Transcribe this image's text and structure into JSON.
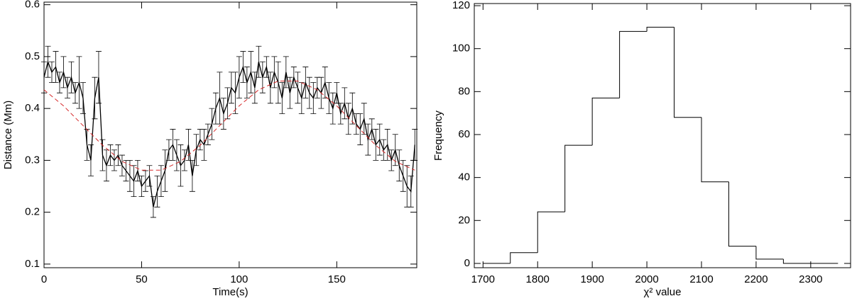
{
  "chart_data": [
    {
      "type": "line",
      "xlabel": "Time(s)",
      "ylabel": "Distance (Mm)",
      "xlim": [
        0,
        191
      ],
      "ylim": [
        0.093,
        0.605
      ],
      "xticks": [
        0,
        50,
        100,
        150
      ],
      "yticks": [
        0.1,
        0.2,
        0.3,
        0.4,
        0.5,
        0.6
      ],
      "series": [
        {
          "color": "#000000",
          "style": "solid",
          "x": [
            0,
            2,
            4,
            6,
            8,
            10,
            12,
            14,
            16,
            18,
            20,
            22,
            24,
            26,
            28,
            30,
            32,
            34,
            36,
            38,
            40,
            42,
            44,
            46,
            48,
            50,
            52,
            54,
            56,
            58,
            60,
            62,
            64,
            66,
            68,
            70,
            72,
            74,
            76,
            78,
            80,
            82,
            84,
            86,
            88,
            90,
            92,
            94,
            96,
            98,
            100,
            102,
            104,
            106,
            108,
            110,
            112,
            114,
            116,
            118,
            120,
            122,
            124,
            126,
            128,
            130,
            132,
            134,
            136,
            138,
            140,
            142,
            144,
            146,
            148,
            150,
            152,
            154,
            156,
            158,
            160,
            162,
            164,
            166,
            168,
            170,
            172,
            174,
            176,
            178,
            180,
            182,
            184,
            186,
            188,
            190
          ],
          "values": [
            0.46,
            0.49,
            0.47,
            0.48,
            0.45,
            0.47,
            0.44,
            0.46,
            0.43,
            0.45,
            0.42,
            0.33,
            0.3,
            0.42,
            0.46,
            0.31,
            0.29,
            0.31,
            0.3,
            0.31,
            0.29,
            0.28,
            0.27,
            0.26,
            0.28,
            0.25,
            0.26,
            0.27,
            0.21,
            0.24,
            0.26,
            0.28,
            0.32,
            0.33,
            0.31,
            0.29,
            0.3,
            0.33,
            0.27,
            0.32,
            0.34,
            0.33,
            0.35,
            0.37,
            0.4,
            0.42,
            0.39,
            0.41,
            0.44,
            0.43,
            0.46,
            0.48,
            0.45,
            0.47,
            0.44,
            0.49,
            0.46,
            0.48,
            0.44,
            0.47,
            0.45,
            0.42,
            0.47,
            0.43,
            0.46,
            0.44,
            0.42,
            0.45,
            0.43,
            0.42,
            0.44,
            0.43,
            0.45,
            0.42,
            0.4,
            0.43,
            0.39,
            0.41,
            0.38,
            0.4,
            0.37,
            0.36,
            0.38,
            0.34,
            0.36,
            0.33,
            0.34,
            0.32,
            0.33,
            0.3,
            0.32,
            0.29,
            0.27,
            0.25,
            0.24,
            0.33
          ],
          "errors": [
            0.03,
            0.03,
            0.02,
            0.03,
            0.02,
            0.03,
            0.02,
            0.03,
            0.02,
            0.05,
            0.03,
            0.03,
            0.03,
            0.04,
            0.05,
            0.03,
            0.03,
            0.02,
            0.02,
            0.02,
            0.02,
            0.02,
            0.03,
            0.03,
            0.02,
            0.02,
            0.02,
            0.02,
            0.02,
            0.03,
            0.03,
            0.04,
            0.02,
            0.03,
            0.03,
            0.04,
            0.02,
            0.03,
            0.03,
            0.03,
            0.02,
            0.03,
            0.02,
            0.03,
            0.03,
            0.05,
            0.03,
            0.03,
            0.03,
            0.04,
            0.04,
            0.03,
            0.03,
            0.04,
            0.03,
            0.03,
            0.03,
            0.02,
            0.03,
            0.03,
            0.04,
            0.03,
            0.03,
            0.03,
            0.02,
            0.03,
            0.03,
            0.03,
            0.03,
            0.03,
            0.02,
            0.03,
            0.03,
            0.03,
            0.03,
            0.02,
            0.02,
            0.03,
            0.03,
            0.03,
            0.02,
            0.03,
            0.03,
            0.03,
            0.02,
            0.03,
            0.03,
            0.02,
            0.03,
            0.02,
            0.03,
            0.03,
            0.03,
            0.04,
            0.03,
            0.03
          ]
        },
        {
          "color": "#d62728",
          "style": "dashed",
          "x": [
            0,
            10,
            20,
            30,
            40,
            50,
            60,
            70,
            80,
            90,
            100,
            110,
            120,
            130,
            140,
            150,
            160,
            170,
            180,
            190
          ],
          "values": [
            0.436,
            0.405,
            0.367,
            0.329,
            0.298,
            0.281,
            0.281,
            0.298,
            0.329,
            0.367,
            0.405,
            0.436,
            0.453,
            0.453,
            0.436,
            0.405,
            0.367,
            0.329,
            0.298,
            0.281
          ]
        }
      ]
    },
    {
      "type": "histogram",
      "xlabel": "χ² value",
      "ylabel": "Frequency",
      "xlim": [
        1684,
        2373
      ],
      "ylim": [
        -2,
        121
      ],
      "xticks": [
        1700,
        1800,
        1900,
        2000,
        2100,
        2200,
        2300
      ],
      "yticks": [
        0,
        20,
        40,
        60,
        80,
        100,
        120
      ],
      "color": "#000000",
      "bins": [
        1700,
        1750,
        1800,
        1850,
        1900,
        1950,
        2000,
        2050,
        2100,
        2150,
        2200,
        2250,
        2300,
        2350
      ],
      "counts": [
        0,
        5,
        24,
        55,
        77,
        108,
        110,
        68,
        38,
        8,
        2,
        0,
        0
      ]
    }
  ]
}
